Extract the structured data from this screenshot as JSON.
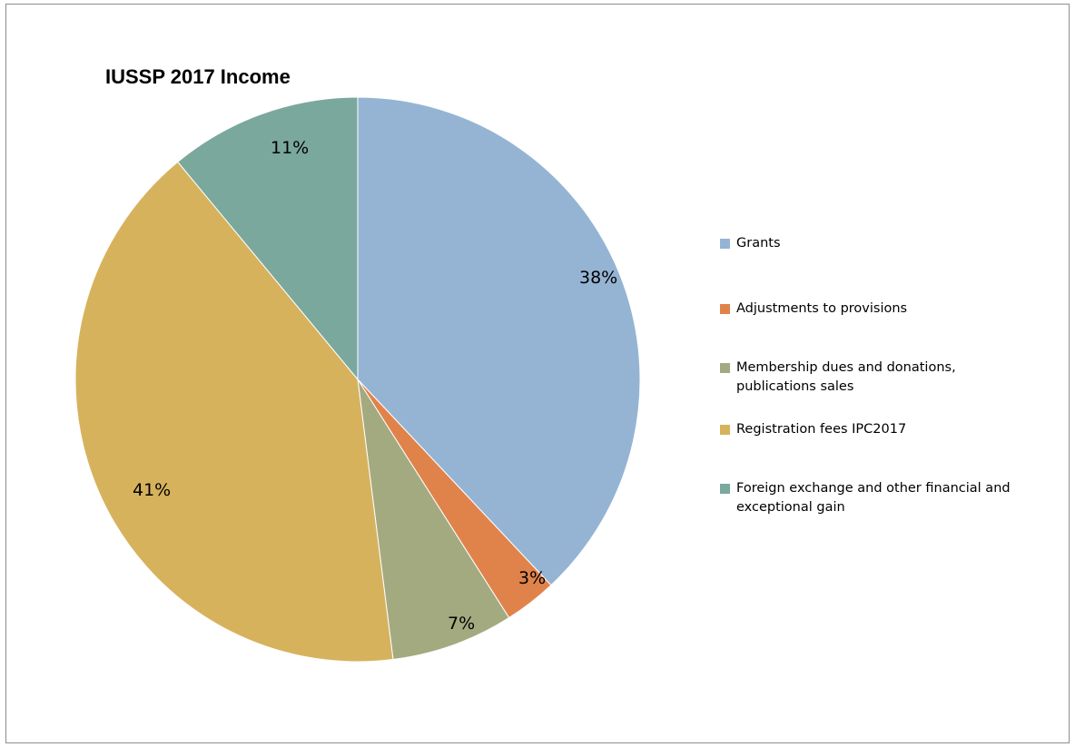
{
  "chart_data": {
    "type": "pie",
    "title": "IUSSP 2017 Income",
    "slices": [
      {
        "label": "Grants",
        "value": 38,
        "display": "38%",
        "color": "#95b4d4"
      },
      {
        "label": "Adjustments to provisions",
        "value": 3,
        "display": "3%",
        "color": "#e0834b"
      },
      {
        "label": "Membership dues and donations, publications sales",
        "value": 7,
        "display": "7%",
        "color": "#a4aa80"
      },
      {
        "label": "Registration fees IPC2017",
        "value": 41,
        "display": "41%",
        "color": "#d7b25d"
      },
      {
        "label": "Foreign exchange and other financial and exceptional gain",
        "value": 11,
        "display": "11%",
        "color": "#7aa89c"
      }
    ],
    "legend_position": "right",
    "start_angle": "12 o'clock",
    "direction": "clockwise"
  }
}
